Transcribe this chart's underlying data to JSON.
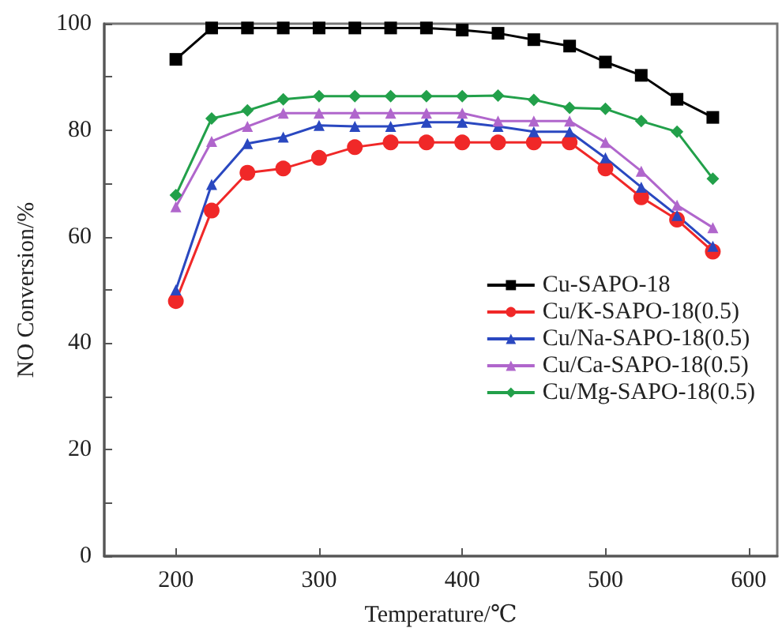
{
  "chart_data": {
    "type": "line",
    "xlabel": "Temperature/℃",
    "ylabel": "NO Conversion/%",
    "x": [
      200,
      225,
      250,
      275,
      300,
      325,
      350,
      375,
      400,
      425,
      450,
      475,
      500,
      525,
      550,
      575
    ],
    "xlim": [
      150,
      620
    ],
    "xticks": [
      200,
      300,
      400,
      500,
      600
    ],
    "ylim": [
      0,
      100
    ],
    "yticks": [
      0,
      20,
      40,
      60,
      80,
      100
    ],
    "grid": false,
    "legend": "right",
    "line_style": "solid",
    "series": [
      {
        "name": "Cu-SAPO-18",
        "color": "#000000",
        "marker": "square",
        "values": [
          93.3,
          99.2,
          99.2,
          99.2,
          99.2,
          99.2,
          99.2,
          99.2,
          98.8,
          98.2,
          97,
          95.8,
          92.8,
          90.3,
          85.8,
          82.4
        ]
      },
      {
        "name": "Cu/K-SAPO-18(0.5)",
        "color": "#f02828",
        "marker": "circle",
        "values": [
          47.9,
          64.9,
          72,
          72.8,
          74.8,
          76.8,
          77.7,
          77.7,
          77.7,
          77.7,
          77.7,
          77.7,
          72.8,
          67.4,
          63.2,
          57.2
        ]
      },
      {
        "name": "Cu/Na-SAPO-18(0.5)",
        "color": "#2a48c0",
        "marker": "triangle",
        "values": [
          50,
          69.8,
          77.5,
          78.7,
          80.9,
          80.7,
          80.7,
          81.5,
          81.5,
          80.7,
          79.7,
          79.7,
          74.8,
          69.3,
          64,
          58.2
        ]
      },
      {
        "name": "Cu/Ca-SAPO-18(0.5)",
        "color": "#b066cc",
        "marker": "triangle",
        "values": [
          65.6,
          77.9,
          80.7,
          83.2,
          83.2,
          83.2,
          83.2,
          83.2,
          83.2,
          81.7,
          81.7,
          81.7,
          77.7,
          72.3,
          65.9,
          61.7
        ]
      },
      {
        "name": "Cu/Mg-SAPO-18(0.5)",
        "color": "#22a04a",
        "marker": "diamond",
        "values": [
          67.8,
          82.2,
          83.7,
          85.8,
          86.4,
          86.4,
          86.4,
          86.4,
          86.4,
          86.5,
          85.7,
          84.2,
          84,
          81.7,
          79.7,
          70.9
        ]
      }
    ]
  }
}
